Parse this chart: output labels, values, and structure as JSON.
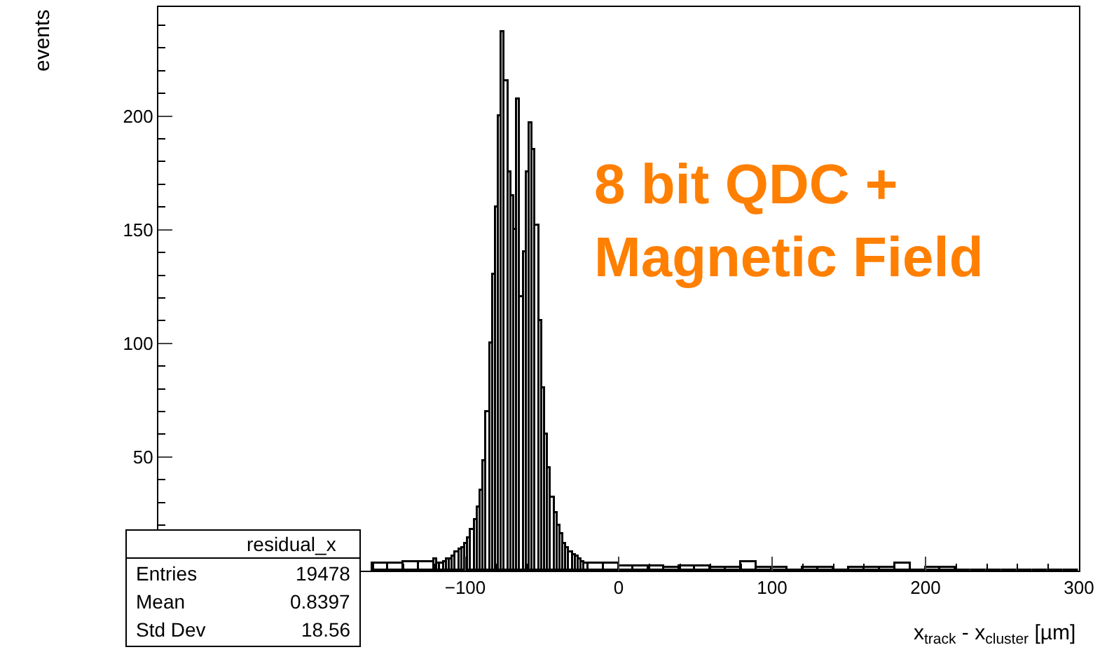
{
  "chart_data": {
    "type": "histogram",
    "xlabel": "x$_{track}$ - x$_{cluster}$ [µm]",
    "ylabel": "events",
    "bins": [
      -160,
      -150,
      -140,
      -130,
      -120,
      -118,
      -116,
      -114,
      -112,
      -110,
      -108,
      -106,
      -104,
      -102,
      -100,
      -98,
      -96,
      -94,
      -92,
      -90,
      -88,
      -86,
      -84,
      -82,
      -80,
      -78,
      -76,
      -74,
      -72,
      -70,
      -68,
      -66,
      -64,
      -62,
      -60,
      -58,
      -56,
      -54,
      -52,
      -50,
      -48,
      -46,
      -44,
      -42,
      -40,
      -38,
      -36,
      -34,
      -32,
      -30,
      -28,
      -26,
      -24,
      -22,
      -20,
      -10,
      0,
      10,
      20,
      30,
      40,
      50,
      60,
      70,
      80,
      90,
      100,
      110,
      120,
      130,
      140,
      150,
      160,
      170,
      180,
      190,
      200,
      210,
      220,
      230,
      240,
      250,
      260,
      270,
      280,
      290,
      300
    ],
    "values": [
      3,
      3,
      4,
      4,
      5,
      3,
      3,
      4,
      5,
      5,
      6,
      8,
      9,
      10,
      12,
      14,
      18,
      22,
      28,
      35,
      48,
      70,
      100,
      130,
      160,
      200,
      237,
      215,
      175,
      165,
      150,
      207,
      120,
      140,
      175,
      197,
      185,
      152,
      110,
      80,
      60,
      45,
      32,
      25,
      20,
      16,
      12,
      10,
      8,
      7,
      6,
      5,
      4,
      3,
      3,
      3,
      2,
      2,
      2,
      1,
      2,
      2,
      1,
      1,
      4,
      1,
      1,
      0,
      1,
      1,
      0,
      1,
      1,
      1,
      3,
      0,
      1,
      1,
      0,
      0,
      0,
      0,
      0,
      0,
      0,
      0
    ],
    "color": "#000000",
    "xlim": [
      -300,
      300
    ],
    "xticks": [
      -100,
      0,
      100,
      200,
      300
    ],
    "ylim": [
      0,
      248
    ],
    "yticks": [
      50,
      100,
      150,
      200
    ],
    "legend": false,
    "annotations": [
      "8 bit QDC +\nMagnetic Field",
      "residual_x",
      "Entries",
      "19478",
      "Mean",
      "0.8397",
      "Std Dev",
      "18.56"
    ]
  }
}
